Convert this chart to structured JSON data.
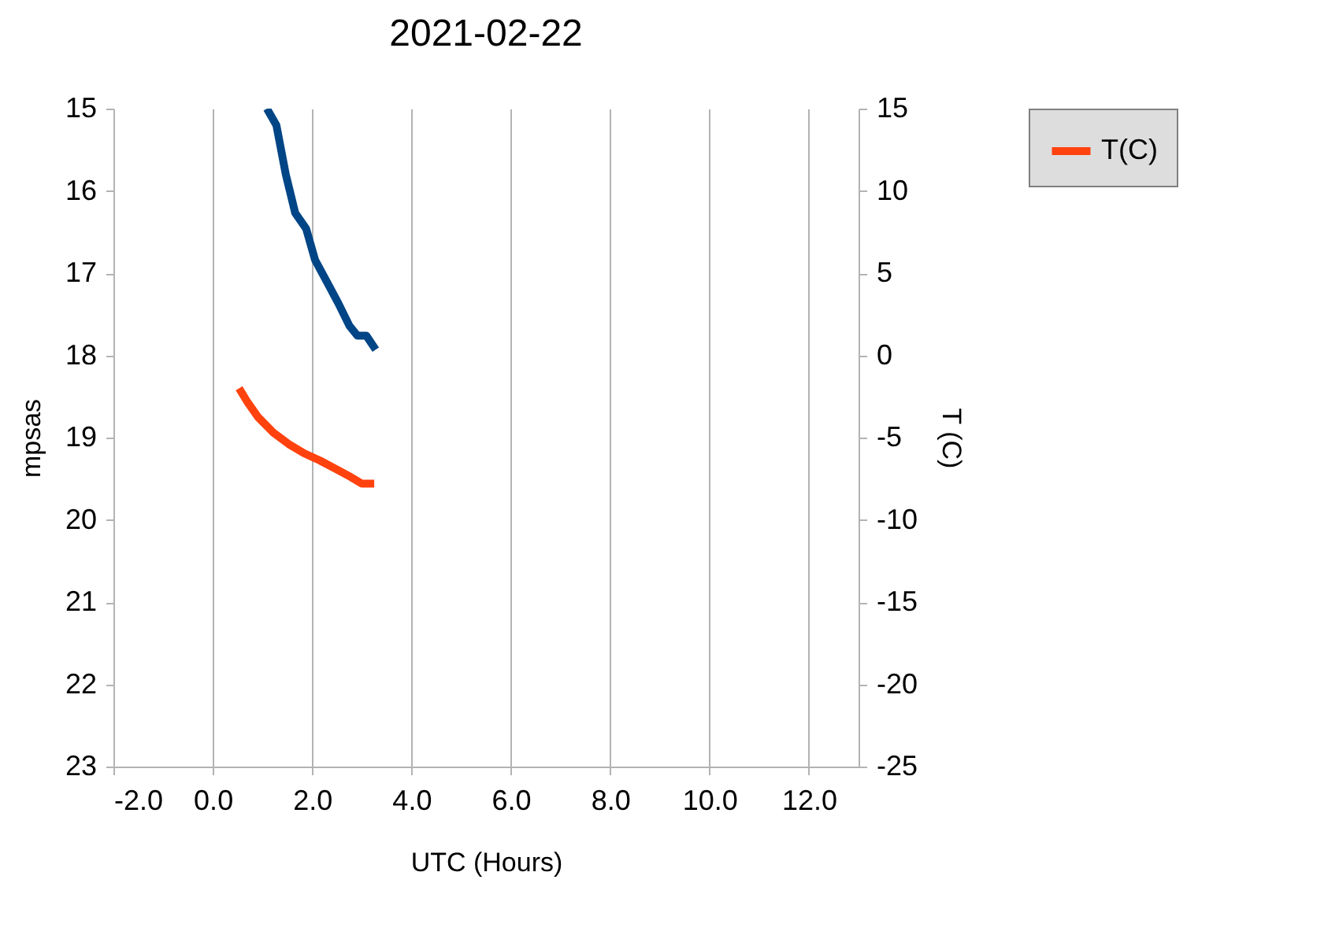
{
  "chart_data": {
    "type": "line",
    "title": "2021-02-22",
    "xlabel": "UTC (Hours)",
    "ylabel": "mpsas",
    "y2label": "T (C)",
    "series": [
      {
        "color": "#004586",
        "x": [
          1.09,
          1.28,
          1.47,
          1.66,
          1.88,
          2.06,
          2.31,
          2.53,
          2.75,
          2.91,
          3.09,
          3.28
        ],
        "values": [
          15.0,
          15.2,
          15.8,
          16.27,
          16.46,
          16.84,
          17.12,
          17.37,
          17.64,
          17.76,
          17.76,
          17.93
        ]
      },
      {
        "name": "T(C)",
        "color": "#ff420e",
        "axis": "y2",
        "x": [
          0.53,
          0.69,
          0.91,
          1.22,
          1.53,
          1.84,
          2.16,
          2.47,
          2.78,
          3.0,
          3.25
        ],
        "values": [
          -2.0,
          -2.8,
          -3.75,
          -4.7,
          -5.4,
          -5.96,
          -6.4,
          -6.9,
          -7.4,
          -7.8,
          -7.8
        ]
      }
    ],
    "xlim": [
      -2,
      13
    ],
    "xticks": [
      {
        "value": -2,
        "label": "-2.0"
      },
      {
        "value": 0,
        "label": "0.0"
      },
      {
        "value": 2,
        "label": "2.0"
      },
      {
        "value": 4,
        "label": "4.0"
      },
      {
        "value": 6,
        "label": "6.0"
      },
      {
        "value": 8,
        "label": "8.0"
      },
      {
        "value": 10,
        "label": "10.0"
      },
      {
        "value": 12,
        "label": "12.0"
      }
    ],
    "ylim": [
      23,
      15
    ],
    "yticks": [
      15,
      16,
      17,
      18,
      19,
      20,
      21,
      22,
      23
    ],
    "y2lim": [
      -25,
      15
    ],
    "y2ticks": [
      15,
      10,
      5,
      0,
      -5,
      -10,
      -15,
      -20,
      -25
    ],
    "grid": "x",
    "legend": "right",
    "line_style": "solid",
    "marker": "none"
  }
}
